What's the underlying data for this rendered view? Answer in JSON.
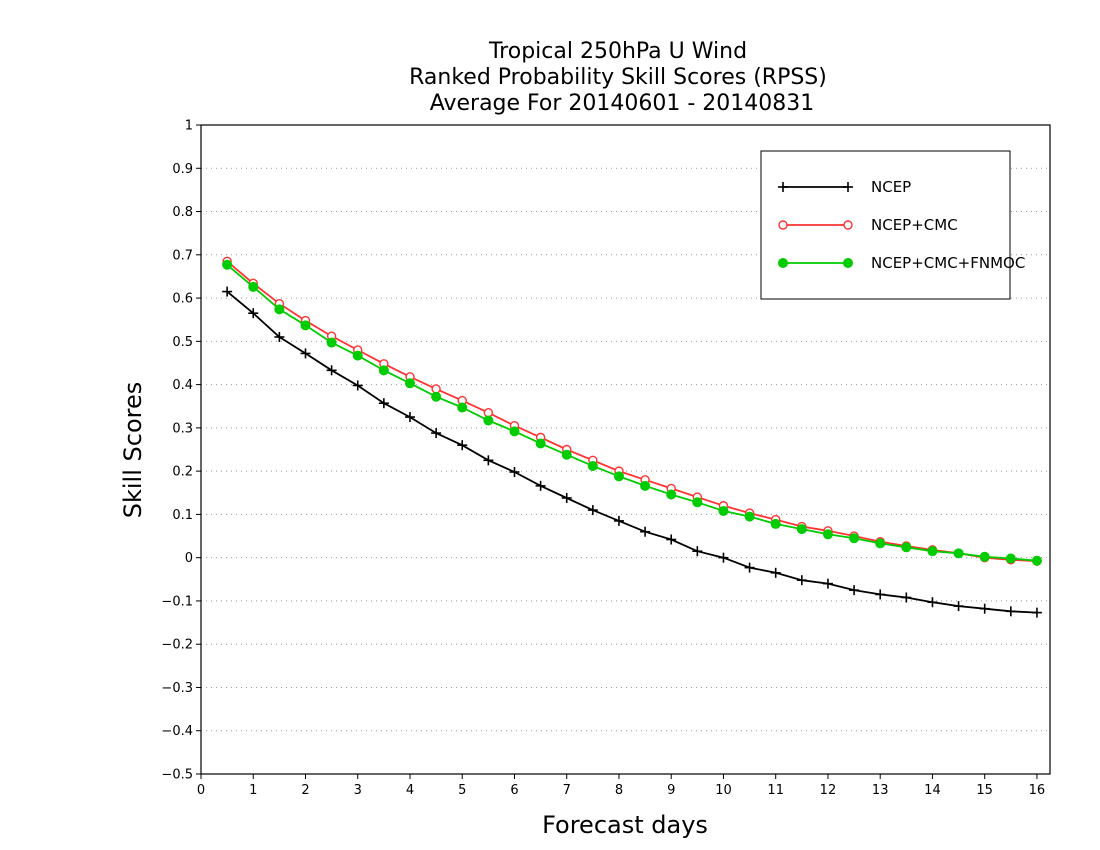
{
  "chart_data": {
    "type": "line",
    "title": [
      "Tropical 250hPa U Wind",
      "Ranked Probability Skill Scores (RPSS)",
      "Average For 20140601 - 20140831"
    ],
    "xlabel": "Forecast days",
    "ylabel": "Skill Scores",
    "xlim": [
      0,
      16.25
    ],
    "ylim": [
      -0.5,
      1
    ],
    "xticks": [
      0,
      1,
      2,
      3,
      4,
      5,
      6,
      7,
      8,
      9,
      10,
      11,
      12,
      13,
      14,
      15,
      16
    ],
    "yticks": [
      -0.5,
      -0.4,
      -0.3,
      -0.2,
      -0.1,
      0,
      0.1,
      0.2,
      0.3,
      0.4,
      0.5,
      0.6,
      0.7,
      0.8,
      0.9,
      1
    ],
    "ytick_labels": [
      "−0.5",
      "−0.4",
      "−0.3",
      "−0.2",
      "−0.1",
      "0",
      "0.1",
      "0.2",
      "0.3",
      "0.4",
      "0.5",
      "0.6",
      "0.7",
      "0.8",
      "0.9",
      "1"
    ],
    "grid": "horizontal dotted",
    "legend_position": "top-right",
    "x": [
      0.5,
      1,
      1.5,
      2,
      2.5,
      3,
      3.5,
      4,
      4.5,
      5,
      5.5,
      6,
      6.5,
      7,
      7.5,
      8,
      8.5,
      9,
      9.5,
      10,
      10.5,
      11,
      11.5,
      12,
      12.5,
      13,
      13.5,
      14,
      14.5,
      15,
      15.5,
      16
    ],
    "series": [
      {
        "name": "NCEP",
        "color": "#000000",
        "marker": "plus",
        "values": [
          0.615,
          0.565,
          0.51,
          0.472,
          0.433,
          0.398,
          0.357,
          0.325,
          0.288,
          0.26,
          0.225,
          0.198,
          0.166,
          0.138,
          0.11,
          0.085,
          0.06,
          0.042,
          0.015,
          0.0,
          -0.023,
          -0.035,
          -0.052,
          -0.06,
          -0.075,
          -0.085,
          -0.092,
          -0.103,
          -0.112,
          -0.118,
          -0.124,
          -0.127
        ]
      },
      {
        "name": "NCEP+CMC",
        "color": "#ff3333",
        "marker": "open-circle",
        "values": [
          0.685,
          0.634,
          0.587,
          0.548,
          0.512,
          0.48,
          0.448,
          0.418,
          0.39,
          0.363,
          0.335,
          0.305,
          0.278,
          0.25,
          0.225,
          0.2,
          0.18,
          0.16,
          0.14,
          0.12,
          0.103,
          0.088,
          0.072,
          0.062,
          0.05,
          0.037,
          0.027,
          0.018,
          0.01,
          0.0,
          -0.005,
          -0.008
        ]
      },
      {
        "name": "NCEP+CMC+FNMOC",
        "color": "#00cc00",
        "marker": "filled-circle",
        "values": [
          0.677,
          0.626,
          0.574,
          0.537,
          0.497,
          0.467,
          0.433,
          0.403,
          0.372,
          0.347,
          0.317,
          0.292,
          0.264,
          0.238,
          0.212,
          0.188,
          0.166,
          0.146,
          0.128,
          0.108,
          0.095,
          0.078,
          0.066,
          0.054,
          0.045,
          0.033,
          0.024,
          0.015,
          0.01,
          0.002,
          -0.002,
          -0.007
        ]
      }
    ]
  }
}
